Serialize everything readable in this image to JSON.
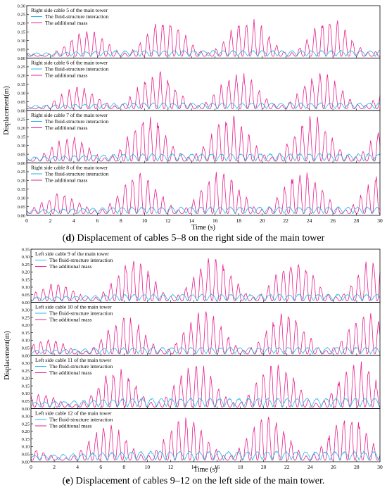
{
  "figure": {
    "caption_d": {
      "letter": "d",
      "text": " Displacement of cables 5–8 on the right side of the main tower"
    },
    "caption_e": {
      "letter": "e",
      "text": " Displacement of cables 9–12 on the left side of the main tower."
    }
  },
  "colors": {
    "fsi": "#29b6e8",
    "mass": "#e8208e",
    "axis": "#000000"
  },
  "chart_data": [
    {
      "type": "line",
      "group": "d",
      "xlabel": "Time (s)",
      "ylabel": "Displacement(m)",
      "xlim": [
        0,
        30
      ],
      "xticks": [
        "0",
        "2",
        "4",
        "6",
        "8",
        "10",
        "12",
        "14",
        "16",
        "18",
        "20",
        "22",
        "24",
        "26",
        "28",
        "30"
      ],
      "ylim": [
        0,
        0.3
      ],
      "yticks": [
        "0.00",
        "0.05",
        "0.10",
        "0.15",
        "0.20",
        "0.25",
        "0.30"
      ],
      "panels": [
        {
          "title": "Right side cable 5 of the main tower",
          "fsi_amp": 0.035,
          "mass_peak": 0.23,
          "seed": 5
        },
        {
          "title": "Right side cable 6 of the main tower",
          "fsi_amp": 0.035,
          "mass_peak": 0.22,
          "seed": 6
        },
        {
          "title": "Right side cable 7 of the main tower",
          "fsi_amp": 0.045,
          "mass_peak": 0.27,
          "seed": 7
        },
        {
          "title": "Right side cable 8 of the main tower",
          "fsi_amp": 0.04,
          "mass_peak": 0.26,
          "seed": 8
        }
      ],
      "series": [
        {
          "name": "The fluid-structure interaction",
          "key": "fsi"
        },
        {
          "name": "The additional mass",
          "key": "mass"
        }
      ]
    },
    {
      "type": "line",
      "group": "e",
      "xlabel": "Time (s)",
      "ylabel": "Displacement(m)",
      "xlim": [
        0,
        30
      ],
      "xticks": [
        "0",
        "2",
        "4",
        "6",
        "8",
        "10",
        "12",
        "14",
        "16",
        "18",
        "20",
        "22",
        "24",
        "26",
        "28",
        "30"
      ],
      "ylim": [
        0,
        0.35
      ],
      "yticks": [
        "0.00",
        "0.05",
        "0.10",
        "0.15",
        "0.20",
        "0.25",
        "0.30",
        "0.35"
      ],
      "panels": [
        {
          "title": "Left side cable 9 of the main tower",
          "fsi_amp": 0.045,
          "mass_peak": 0.3,
          "seed": 9
        },
        {
          "title": "Left side cable 10 of the main tower",
          "fsi_amp": 0.045,
          "mass_peak": 0.29,
          "seed": 10
        },
        {
          "title": "Left side cable 11 of the main tower",
          "fsi_amp": 0.06,
          "mass_peak": 0.31,
          "seed": 11
        },
        {
          "title": "Left side cable 12 of the main tower",
          "fsi_amp": 0.06,
          "mass_peak": 0.31,
          "seed": 12
        }
      ],
      "series": [
        {
          "name": "The fluid-structure interaction",
          "key": "fsi"
        },
        {
          "name": "The additional mass",
          "key": "mass"
        }
      ]
    }
  ]
}
